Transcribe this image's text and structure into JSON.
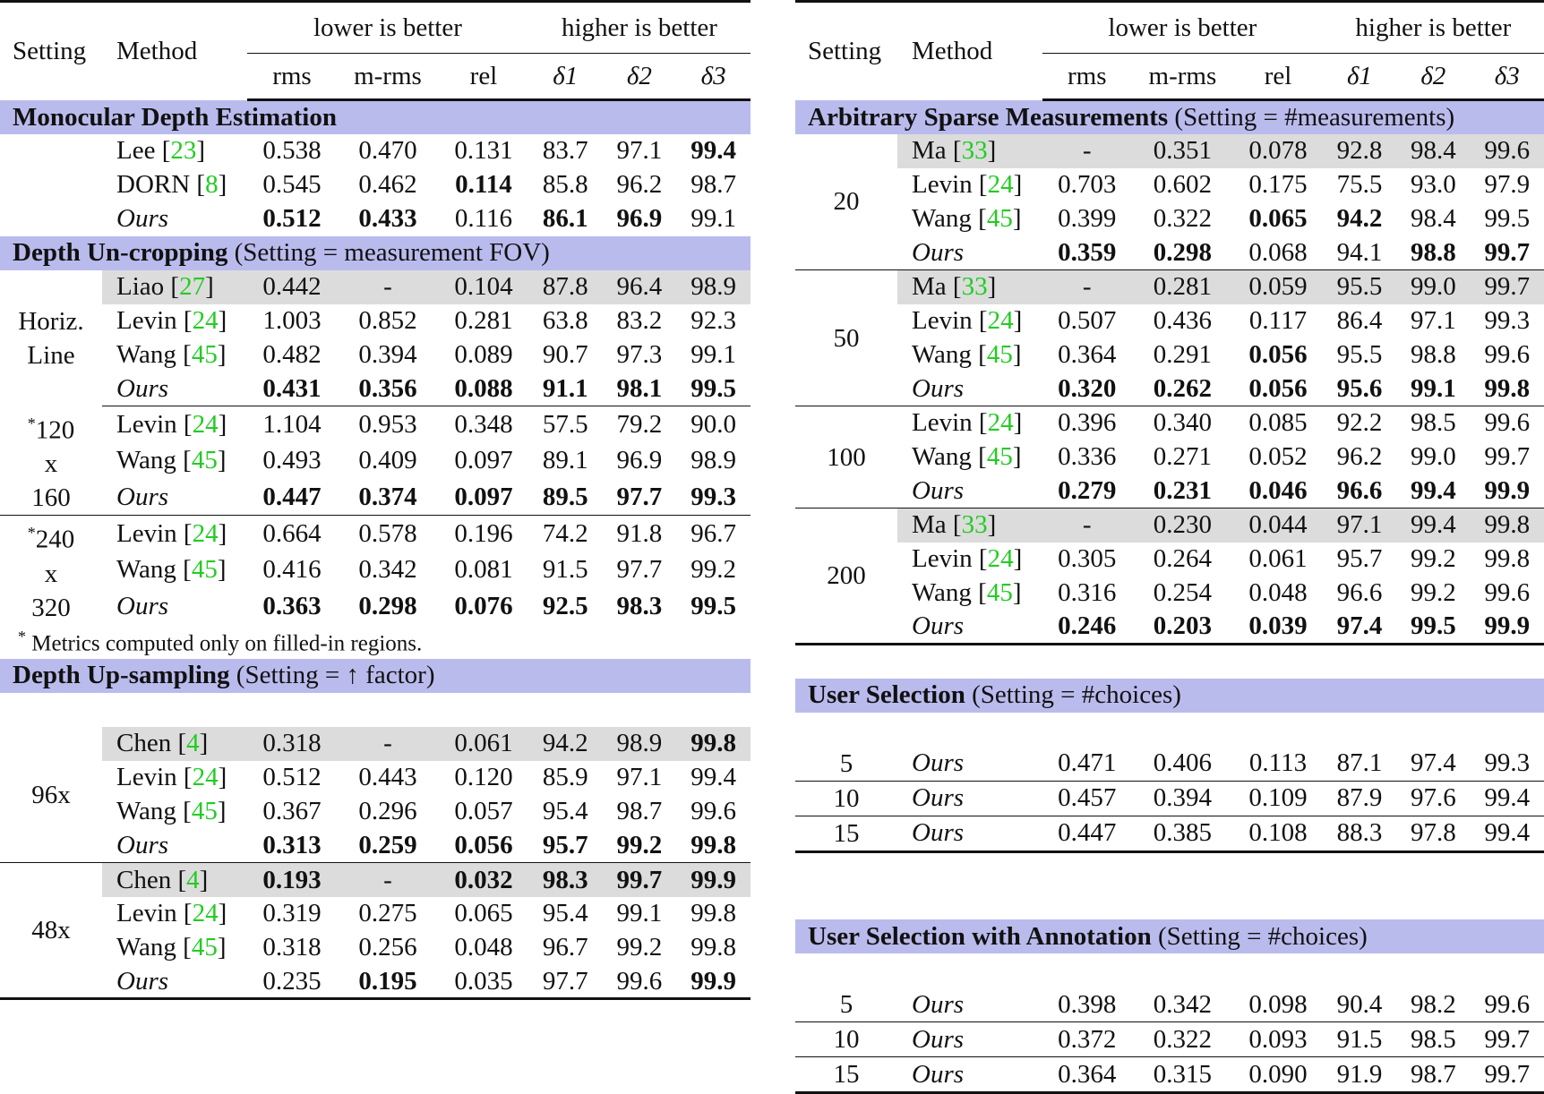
{
  "header": {
    "setting": "Setting",
    "method": "Method",
    "lower": "lower is better",
    "higher": "higher is better",
    "metrics": [
      "rms",
      "m-rms",
      "rel",
      "δ1",
      "δ2",
      "δ3"
    ]
  },
  "left": {
    "mde": {
      "title": "Monocular Depth Estimation",
      "rows": [
        {
          "method": "Lee",
          "cite": "23",
          "v": [
            "0.538",
            "0.470",
            "0.131",
            "83.7",
            "97.1",
            "99.4"
          ]
        },
        {
          "method": "DORN",
          "cite": "8",
          "v": [
            "0.545",
            "0.462",
            "0.114",
            "85.8",
            "96.2",
            "98.7"
          ]
        },
        {
          "method": "Ours",
          "cite": "",
          "v": [
            "0.512",
            "0.433",
            "0.116",
            "86.1",
            "96.9",
            "99.1"
          ]
        }
      ]
    },
    "uncrop": {
      "title": "Depth Un-cropping",
      "note": "(Setting = measurement FOV)",
      "groups": [
        {
          "setting": [
            "Horiz.",
            "Line"
          ],
          "rows": [
            {
              "method": "Liao",
              "cite": "27",
              "v": [
                "0.442",
                "-",
                "0.104",
                "87.8",
                "96.4",
                "98.9"
              ]
            },
            {
              "method": "Levin",
              "cite": "24",
              "v": [
                "1.003",
                "0.852",
                "0.281",
                "63.8",
                "83.2",
                "92.3"
              ]
            },
            {
              "method": "Wang",
              "cite": "45",
              "v": [
                "0.482",
                "0.394",
                "0.089",
                "90.7",
                "97.3",
                "99.1"
              ]
            },
            {
              "method": "Ours",
              "cite": "",
              "v": [
                "0.431",
                "0.356",
                "0.088",
                "91.1",
                "98.1",
                "99.5"
              ]
            }
          ]
        },
        {
          "setting": [
            "*",
            "120",
            "x",
            "160"
          ],
          "rows": [
            {
              "method": "Levin",
              "cite": "24",
              "v": [
                "1.104",
                "0.953",
                "0.348",
                "57.5",
                "79.2",
                "90.0"
              ]
            },
            {
              "method": "Wang",
              "cite": "45",
              "v": [
                "0.493",
                "0.409",
                "0.097",
                "89.1",
                "96.9",
                "98.9"
              ]
            },
            {
              "method": "Ours",
              "cite": "",
              "v": [
                "0.447",
                "0.374",
                "0.097",
                "89.5",
                "97.7",
                "99.3"
              ]
            }
          ]
        },
        {
          "setting": [
            "*",
            "240",
            "x",
            "320"
          ],
          "rows": [
            {
              "method": "Levin",
              "cite": "24",
              "v": [
                "0.664",
                "0.578",
                "0.196",
                "74.2",
                "91.8",
                "96.7"
              ]
            },
            {
              "method": "Wang",
              "cite": "45",
              "v": [
                "0.416",
                "0.342",
                "0.081",
                "91.5",
                "97.7",
                "99.2"
              ]
            },
            {
              "method": "Ours",
              "cite": "",
              "v": [
                "0.363",
                "0.298",
                "0.076",
                "92.5",
                "98.3",
                "99.5"
              ]
            }
          ]
        }
      ],
      "footnote_mark": "*",
      "footnote": "Metrics computed only on filled-in regions."
    },
    "upsamp": {
      "title": "Depth Up-sampling",
      "note": "(Setting = ↑ factor)",
      "groups": [
        {
          "setting": "96x",
          "rows": [
            {
              "method": "Chen",
              "cite": "4",
              "v": [
                "0.318",
                "-",
                "0.061",
                "94.2",
                "98.9",
                "99.8"
              ]
            },
            {
              "method": "Levin",
              "cite": "24",
              "v": [
                "0.512",
                "0.443",
                "0.120",
                "85.9",
                "97.1",
                "99.4"
              ]
            },
            {
              "method": "Wang",
              "cite": "45",
              "v": [
                "0.367",
                "0.296",
                "0.057",
                "95.4",
                "98.7",
                "99.6"
              ]
            },
            {
              "method": "Ours",
              "cite": "",
              "v": [
                "0.313",
                "0.259",
                "0.056",
                "95.7",
                "99.2",
                "99.8"
              ]
            }
          ]
        },
        {
          "setting": "48x",
          "rows": [
            {
              "method": "Chen",
              "cite": "4",
              "v": [
                "0.193",
                "-",
                "0.032",
                "98.3",
                "99.7",
                "99.9"
              ]
            },
            {
              "method": "Levin",
              "cite": "24",
              "v": [
                "0.319",
                "0.275",
                "0.065",
                "95.4",
                "99.1",
                "99.8"
              ]
            },
            {
              "method": "Wang",
              "cite": "45",
              "v": [
                "0.318",
                "0.256",
                "0.048",
                "96.7",
                "99.2",
                "99.8"
              ]
            },
            {
              "method": "Ours",
              "cite": "",
              "v": [
                "0.235",
                "0.195",
                "0.035",
                "97.7",
                "99.6",
                "99.9"
              ]
            }
          ]
        }
      ]
    }
  },
  "right": {
    "sparse": {
      "title": "Arbitrary Sparse Measurements",
      "note": "(Setting = #measurements)",
      "groups": [
        {
          "setting": "20",
          "rows": [
            {
              "method": "Ma",
              "cite": "33",
              "v": [
                "-",
                "0.351",
                "0.078",
                "92.8",
                "98.4",
                "99.6"
              ]
            },
            {
              "method": "Levin",
              "cite": "24",
              "v": [
                "0.703",
                "0.602",
                "0.175",
                "75.5",
                "93.0",
                "97.9"
              ]
            },
            {
              "method": "Wang",
              "cite": "45",
              "v": [
                "0.399",
                "0.322",
                "0.065",
                "94.2",
                "98.4",
                "99.5"
              ]
            },
            {
              "method": "Ours",
              "cite": "",
              "v": [
                "0.359",
                "0.298",
                "0.068",
                "94.1",
                "98.8",
                "99.7"
              ]
            }
          ]
        },
        {
          "setting": "50",
          "rows": [
            {
              "method": "Ma",
              "cite": "33",
              "v": [
                "-",
                "0.281",
                "0.059",
                "95.5",
                "99.0",
                "99.7"
              ]
            },
            {
              "method": "Levin",
              "cite": "24",
              "v": [
                "0.507",
                "0.436",
                "0.117",
                "86.4",
                "97.1",
                "99.3"
              ]
            },
            {
              "method": "Wang",
              "cite": "45",
              "v": [
                "0.364",
                "0.291",
                "0.056",
                "95.5",
                "98.8",
                "99.6"
              ]
            },
            {
              "method": "Ours",
              "cite": "",
              "v": [
                "0.320",
                "0.262",
                "0.056",
                "95.6",
                "99.1",
                "99.8"
              ]
            }
          ]
        },
        {
          "setting": "100",
          "rows": [
            {
              "method": "Levin",
              "cite": "24",
              "v": [
                "0.396",
                "0.340",
                "0.085",
                "92.2",
                "98.5",
                "99.6"
              ]
            },
            {
              "method": "Wang",
              "cite": "45",
              "v": [
                "0.336",
                "0.271",
                "0.052",
                "96.2",
                "99.0",
                "99.7"
              ]
            },
            {
              "method": "Ours",
              "cite": "",
              "v": [
                "0.279",
                "0.231",
                "0.046",
                "96.6",
                "99.4",
                "99.9"
              ]
            }
          ]
        },
        {
          "setting": "200",
          "rows": [
            {
              "method": "Ma",
              "cite": "33",
              "v": [
                "-",
                "0.230",
                "0.044",
                "97.1",
                "99.4",
                "99.8"
              ]
            },
            {
              "method": "Levin",
              "cite": "24",
              "v": [
                "0.305",
                "0.264",
                "0.061",
                "95.7",
                "99.2",
                "99.8"
              ]
            },
            {
              "method": "Wang",
              "cite": "45",
              "v": [
                "0.316",
                "0.254",
                "0.048",
                "96.6",
                "99.2",
                "99.6"
              ]
            },
            {
              "method": "Ours",
              "cite": "",
              "v": [
                "0.246",
                "0.203",
                "0.039",
                "97.4",
                "99.5",
                "99.9"
              ]
            }
          ]
        }
      ]
    },
    "user": {
      "title": "User Selection",
      "note": "(Setting = #choices)",
      "rows": [
        {
          "setting": "5",
          "method": "Ours",
          "v": [
            "0.471",
            "0.406",
            "0.113",
            "87.1",
            "97.4",
            "99.3"
          ]
        },
        {
          "setting": "10",
          "method": "Ours",
          "v": [
            "0.457",
            "0.394",
            "0.109",
            "87.9",
            "97.6",
            "99.4"
          ]
        },
        {
          "setting": "15",
          "method": "Ours",
          "v": [
            "0.447",
            "0.385",
            "0.108",
            "88.3",
            "97.8",
            "99.4"
          ]
        }
      ]
    },
    "annot": {
      "title": "User Selection with Annotation",
      "note": "(Setting = #choices)",
      "rows": [
        {
          "setting": "5",
          "method": "Ours",
          "v": [
            "0.398",
            "0.342",
            "0.098",
            "90.4",
            "98.2",
            "99.6"
          ]
        },
        {
          "setting": "10",
          "method": "Ours",
          "v": [
            "0.372",
            "0.322",
            "0.093",
            "91.5",
            "98.5",
            "99.7"
          ]
        },
        {
          "setting": "15",
          "method": "Ours",
          "v": [
            "0.364",
            "0.315",
            "0.090",
            "91.9",
            "98.7",
            "99.7"
          ]
        }
      ]
    }
  }
}
